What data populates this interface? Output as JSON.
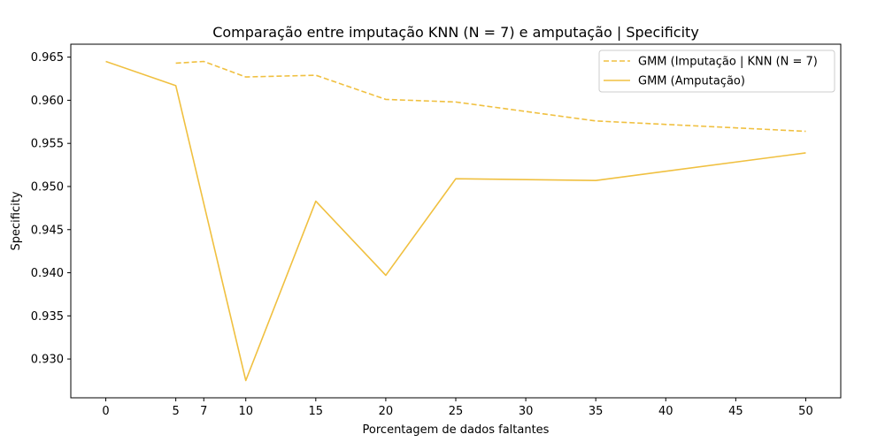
{
  "chart_data": {
    "type": "line",
    "title": "Comparação entre imputação KNN (N = 7) e amputação | Specificity",
    "xlabel": "Porcentagem de dados faltantes",
    "ylabel": "Specificity",
    "xlim": [
      -2.5,
      52.5
    ],
    "ylim": [
      0.9255,
      0.9665
    ],
    "x_ticks": [
      0,
      5,
      7,
      10,
      15,
      20,
      25,
      30,
      35,
      40,
      45,
      50
    ],
    "y_ticks": [
      0.93,
      0.935,
      0.94,
      0.945,
      0.95,
      0.955,
      0.96,
      0.965
    ],
    "y_tick_labels": [
      "0.930",
      "0.935",
      "0.940",
      "0.945",
      "0.950",
      "0.955",
      "0.960",
      "0.965"
    ],
    "grid": false,
    "legend_position": "upper right",
    "series": [
      {
        "name": "GMM (Imputação | KNN (N = 7)",
        "style": "dashed",
        "color": "#f0c040",
        "x": [
          5,
          7,
          10,
          15,
          20,
          25,
          35,
          50
        ],
        "y": [
          0.9643,
          0.9645,
          0.9627,
          0.9629,
          0.9601,
          0.9598,
          0.9576,
          0.9564
        ]
      },
      {
        "name": "GMM (Amputação)",
        "style": "solid",
        "color": "#f0c040",
        "x": [
          0,
          5,
          10,
          15,
          20,
          25,
          35,
          50
        ],
        "y": [
          0.9645,
          0.9617,
          0.9275,
          0.9483,
          0.9397,
          0.9509,
          0.9507,
          0.9539
        ]
      }
    ]
  }
}
